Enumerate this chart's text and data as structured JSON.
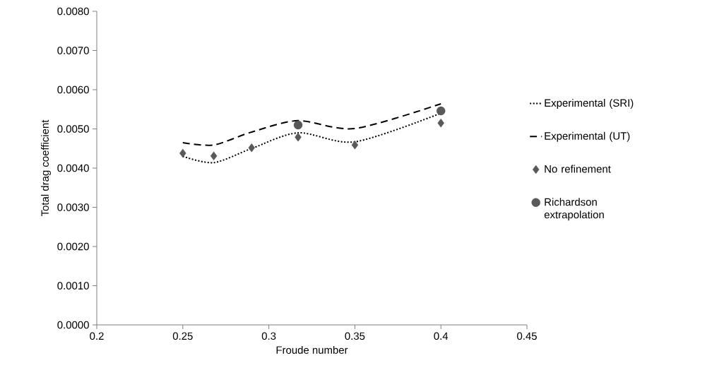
{
  "chart_data": {
    "type": "line",
    "xlabel": "Froude number",
    "ylabel": "Total drag coefficient",
    "xlim": [
      0.2,
      0.45
    ],
    "xticks": [
      0.2,
      0.25,
      0.3,
      0.35,
      0.4,
      0.45
    ],
    "ylim": [
      0,
      0.008
    ],
    "yticks": [
      {
        "value": 0,
        "label": "0.0000"
      },
      {
        "value": 0.001,
        "label": "0.0010"
      },
      {
        "value": 0.002,
        "label": "0.0020"
      },
      {
        "value": 0.003,
        "label": "0.0030"
      },
      {
        "value": 0.004,
        "label": "0.0040"
      },
      {
        "value": 0.005,
        "label": "0.0050"
      },
      {
        "value": 0.006,
        "label": "0.0060"
      },
      {
        "value": 0.007,
        "label": "0.0070"
      },
      {
        "value": 0.008,
        "label": "0.0080"
      }
    ],
    "grid": false,
    "legend": "right",
    "series": [
      {
        "name": "Experimental (SRI)",
        "line_style": "dotted",
        "marker": "none",
        "color": "#000000",
        "x": [
          0.25,
          0.268,
          0.29,
          0.317,
          0.35,
          0.4
        ],
        "values": [
          0.0043,
          0.00414,
          0.0045,
          0.0049,
          0.00467,
          0.0054
        ]
      },
      {
        "name": "Experimental (UT)",
        "line_style": "dashed",
        "marker": "none",
        "color": "#000000",
        "x": [
          0.25,
          0.268,
          0.29,
          0.317,
          0.35,
          0.4
        ],
        "values": [
          0.00465,
          0.00459,
          0.00492,
          0.00521,
          0.00501,
          0.00564
        ]
      },
      {
        "name": "No refinement",
        "type": "scatter",
        "marker": "diamond",
        "color": "#595959",
        "x": [
          0.25,
          0.268,
          0.29,
          0.317,
          0.35,
          0.4
        ],
        "values": [
          0.00438,
          0.00431,
          0.00452,
          0.00479,
          0.00459,
          0.00515
        ]
      },
      {
        "name": "Richardson extrapolation",
        "type": "scatter",
        "marker": "circle",
        "color": "#595959",
        "x": [
          0.317,
          0.4
        ],
        "values": [
          0.0051,
          0.00546
        ]
      }
    ]
  }
}
